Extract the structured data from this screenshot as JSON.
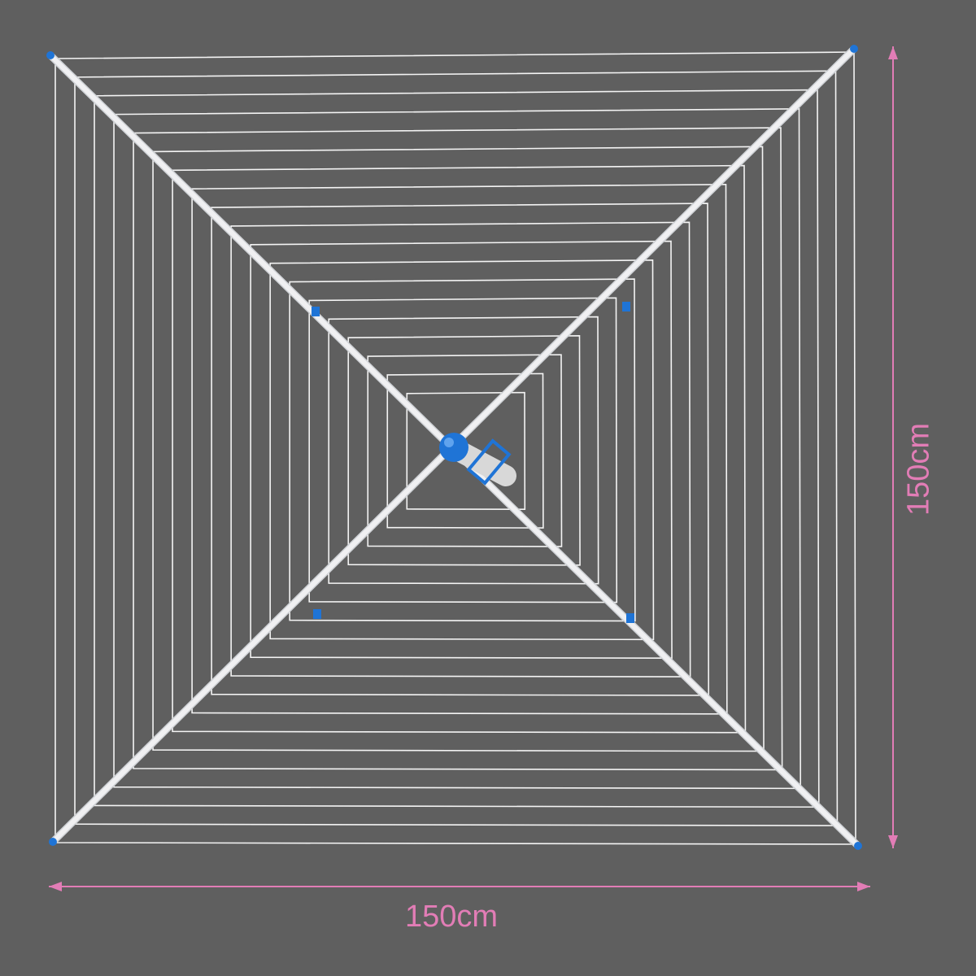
{
  "colors": {
    "background": "#5f5f5f",
    "line": "#f4f4f4",
    "arm": "#f0f0f2",
    "hub": "#1f74d6",
    "dimension": "#e27db6"
  },
  "dimensions": {
    "width_label": "150cm",
    "height_label": "150cm"
  }
}
